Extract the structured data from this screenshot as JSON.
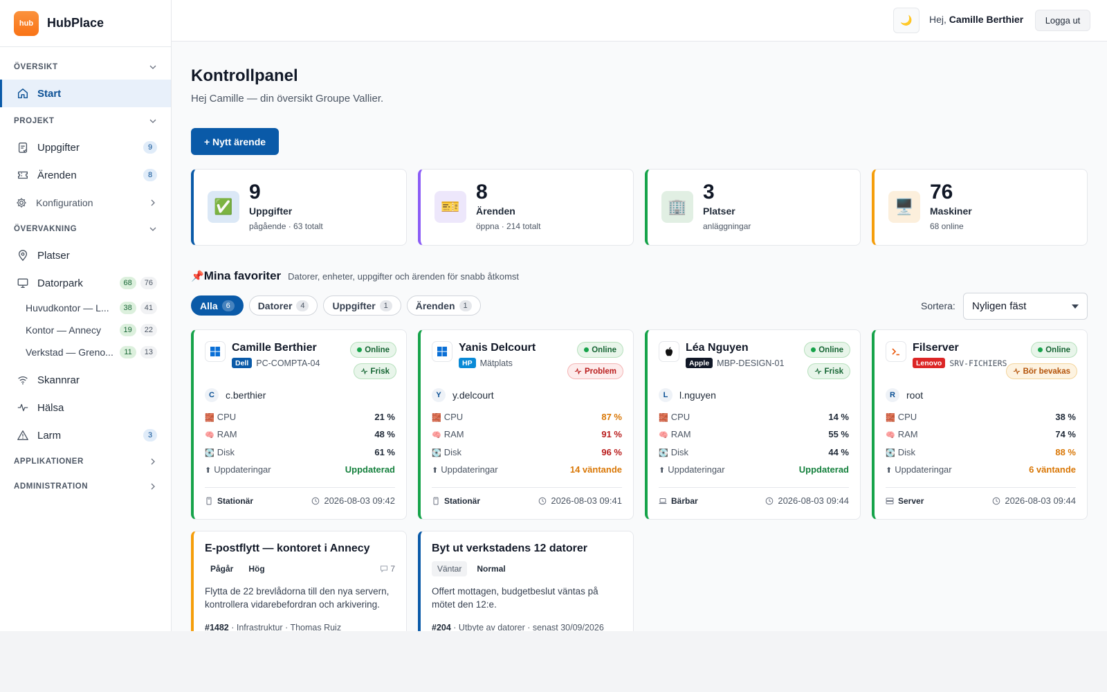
{
  "brand": {
    "logo_text": "hub",
    "name": "HubPlace"
  },
  "sidebar": {
    "sections": {
      "oversikt": "ÖVERSIKT",
      "projekt": "PROJEKT",
      "overvakning": "ÖVERVAKNING",
      "applikationer": "APPLIKATIONER",
      "administration": "ADMINISTRATION"
    },
    "start": "Start",
    "uppgifter": {
      "label": "Uppgifter",
      "count": "9"
    },
    "arenden": {
      "label": "Ärenden",
      "count": "8"
    },
    "konfiguration": "Konfiguration",
    "platser": "Platser",
    "datorpark": {
      "label": "Datorpark",
      "online": "68",
      "total": "76"
    },
    "sites": [
      {
        "label": "Huvudkontor — L...",
        "online": "38",
        "total": "41"
      },
      {
        "label": "Kontor — Annecy",
        "online": "19",
        "total": "22"
      },
      {
        "label": "Verkstad — Greno...",
        "online": "11",
        "total": "13"
      }
    ],
    "skannrar": "Skannrar",
    "halsa": "Hälsa",
    "larm": {
      "label": "Larm",
      "count": "3"
    }
  },
  "topbar": {
    "theme_icon": "🌙",
    "greeting_prefix": "Hej,",
    "user_name": "Camille Berthier",
    "logout": "Logga ut"
  },
  "main": {
    "title": "Kontrollpanel",
    "subtitle": "Hej Camille — din översikt Groupe Vallier.",
    "new_button": "+ Nytt ärende",
    "stats": [
      {
        "num": "9",
        "label": "Uppgifter",
        "sub": "pågående · 63 totalt",
        "icon": "✅",
        "accent": "#0a5aa8",
        "icon_bg": "#dbe8f6"
      },
      {
        "num": "8",
        "label": "Ärenden",
        "sub": "öppna · 214 totalt",
        "icon": "🎫",
        "accent": "#8b5cf6",
        "icon_bg": "#ede7fb"
      },
      {
        "num": "3",
        "label": "Platser",
        "sub": "anläggningar",
        "icon": "🏢",
        "accent": "#16a34a",
        "icon_bg": "#e1efe3"
      },
      {
        "num": "76",
        "label": "Maskiner",
        "sub": "68 online",
        "icon": "🖥️",
        "accent": "#f59e0b",
        "icon_bg": "#fcefdc"
      }
    ],
    "favorites": {
      "pin_icon": "📌",
      "title": "Mina favoriter",
      "description": "Datorer, enheter, uppgifter och ärenden för snabb åtkomst",
      "filters": [
        {
          "label": "Alla",
          "count": "6",
          "active": true
        },
        {
          "label": "Datorer",
          "count": "4"
        },
        {
          "label": "Uppgifter",
          "count": "1"
        },
        {
          "label": "Ärenden",
          "count": "1"
        }
      ],
      "sort_label": "Sortera:",
      "sort_value": "Nyligen fäst"
    },
    "devices": [
      {
        "name": "Camille Berthier",
        "brand": "Dell",
        "brand_color": "#0a5aa8",
        "host": "PC-COMPTA-04",
        "os": "windows-icon",
        "status": "Online",
        "health": "Frisk",
        "health_kind": "ok",
        "user_initial": "C",
        "user": "c.berthier",
        "cpu": "21 %",
        "cpu_kind": "",
        "ram": "48 %",
        "ram_kind": "",
        "disk": "61 %",
        "disk_kind": "",
        "updates": "Uppdaterad",
        "updates_kind": "good",
        "type": "Stationär",
        "time": "2026-08-03 09:42"
      },
      {
        "name": "Yanis Delcourt",
        "brand": "HP",
        "brand_color": "#0a8ad6",
        "host": "Mätplats",
        "os": "windows-icon",
        "status": "Online",
        "health": "Problem",
        "health_kind": "bad",
        "user_initial": "Y",
        "user": "y.delcourt",
        "cpu": "87 %",
        "cpu_kind": "warn",
        "ram": "91 %",
        "ram_kind": "bad",
        "disk": "96 %",
        "disk_kind": "bad",
        "updates": "14 väntande",
        "updates_kind": "warn",
        "type": "Stationär",
        "time": "2026-08-03 09:41"
      },
      {
        "name": "Léa Nguyen",
        "brand": "Apple",
        "brand_color": "#111827",
        "host": "MBP-DESIGN-01",
        "os": "apple-icon",
        "status": "Online",
        "health": "Frisk",
        "health_kind": "ok",
        "user_initial": "L",
        "user": "l.nguyen",
        "cpu": "14 %",
        "cpu_kind": "",
        "ram": "55 %",
        "ram_kind": "",
        "disk": "44 %",
        "disk_kind": "",
        "updates": "Uppdaterad",
        "updates_kind": "good",
        "type": "Bärbar",
        "time": "2026-08-03 09:44"
      },
      {
        "name": "Filserver",
        "brand": "Lenovo",
        "brand_color": "#dc2626",
        "host": "SRV-FICHIERS",
        "os": "terminal-icon",
        "status": "Online",
        "health": "Bör bevakas",
        "health_kind": "warn",
        "user_initial": "R",
        "user": "root",
        "cpu": "38 %",
        "cpu_kind": "",
        "ram": "74 %",
        "ram_kind": "",
        "disk": "88 %",
        "disk_kind": "warn",
        "updates": "6 väntande",
        "updates_kind": "warn",
        "type": "Server",
        "time": "2026-08-03 09:44"
      }
    ],
    "metric_labels": {
      "cpu": "CPU",
      "ram": "RAM",
      "disk": "Disk",
      "updates": "Uppdateringar"
    },
    "metric_icons": {
      "cpu": "🧱",
      "ram": "🧠",
      "disk": "💽"
    },
    "tasks": [
      {
        "title": "E-postflytt — kontoret i Annecy",
        "tag1": "Pågår",
        "tag2": "Hög",
        "comments": "7",
        "desc": "Flytta de 22 brevlådorna till den nya servern, kontrollera vidarebefordran och arkivering.",
        "ref": "#1482",
        "meta": " · Infrastruktur · Thomas Ruiz",
        "accent": "#f59e0b"
      },
      {
        "title": "Byt ut verkstadens 12 datorer",
        "tag1": "Väntar",
        "tag2": "Normal",
        "comments": "",
        "desc": "Offert mottagen, budgetbeslut väntas på mötet den 12:e.",
        "ref": "#204",
        "meta": " · Utbyte av datorer · senast 30/09/2026",
        "accent": "#0a5aa8"
      }
    ]
  }
}
